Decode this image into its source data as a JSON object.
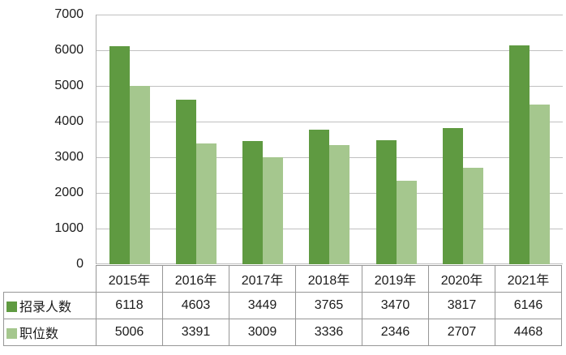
{
  "chart_data": {
    "type": "bar",
    "title": "",
    "xlabel": "",
    "ylabel": "",
    "categories": [
      "2015年",
      "2016年",
      "2017年",
      "2018年",
      "2019年",
      "2020年",
      "2021年"
    ],
    "series": [
      {
        "key": "recruit-count",
        "name": "招录人数",
        "color": "#5f9a41",
        "values": [
          6118,
          4603,
          3449,
          3765,
          3470,
          3817,
          6146
        ]
      },
      {
        "key": "position-count",
        "name": "职位数",
        "color": "#a5c78e",
        "values": [
          5006,
          3391,
          3009,
          3336,
          2346,
          2707,
          4468
        ]
      }
    ],
    "ylim": [
      0,
      7000
    ],
    "yticks": [
      7000,
      6000,
      5000,
      4000,
      3000,
      2000,
      1000,
      0
    ],
    "grid": true,
    "legend_position": "data-table-row-labels"
  },
  "colors": {
    "bar_dark_green": "#5f9a41",
    "bar_light_green": "#a5c78e",
    "gridline": "#c0c0c0",
    "axis_line": "#adadad",
    "table_border": "#969696",
    "text": "#1b1b1b",
    "background": "#ffffff"
  }
}
